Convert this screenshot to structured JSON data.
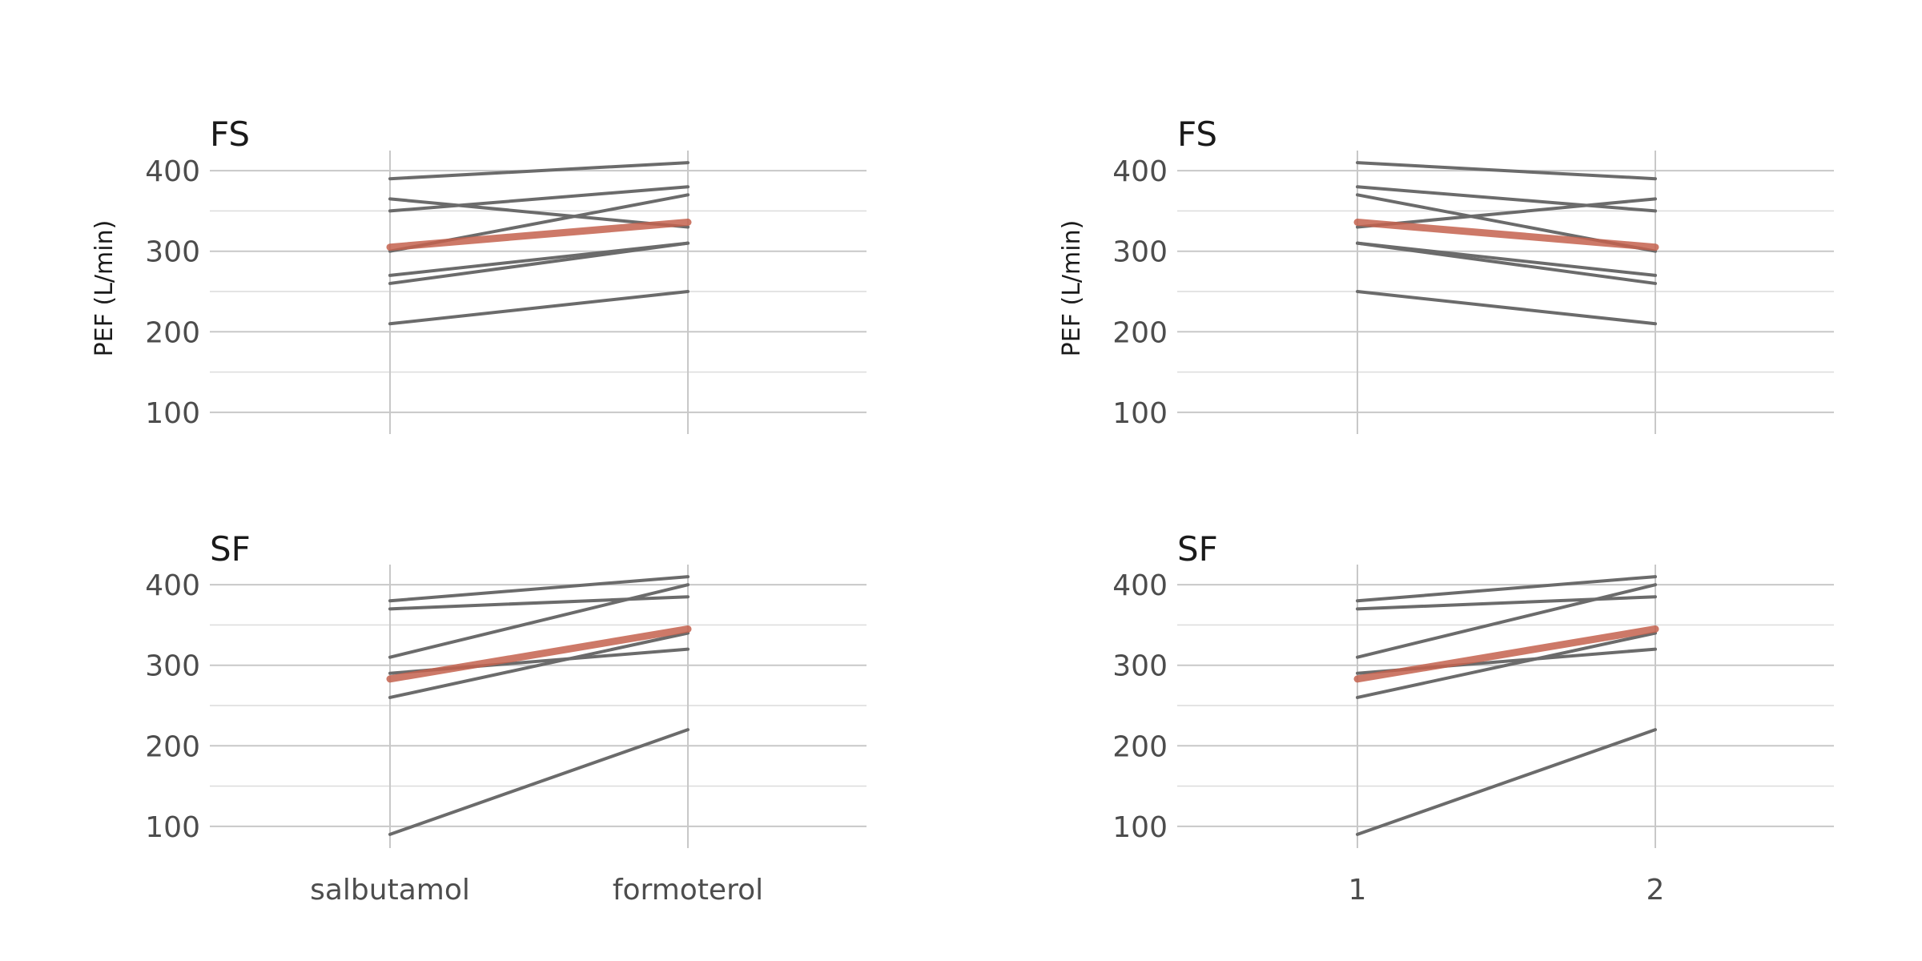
{
  "chart_data": [
    {
      "type": "line",
      "title": "FS",
      "ylabel": "PEF (L/min)",
      "categories": [
        "salbutamol",
        "formoterol"
      ],
      "show_x_tick_labels": false,
      "ylim": [
        75,
        425
      ],
      "yticks": [
        100,
        200,
        300,
        400
      ],
      "grid": true,
      "series": [
        {
          "values": [
            390,
            410
          ]
        },
        {
          "values": [
            365,
            330
          ]
        },
        {
          "values": [
            350,
            380
          ]
        },
        {
          "values": [
            300,
            370
          ]
        },
        {
          "values": [
            270,
            310
          ]
        },
        {
          "values": [
            260,
            310
          ]
        },
        {
          "values": [
            210,
            250
          ]
        }
      ],
      "mean_series": {
        "values": [
          305,
          336
        ],
        "color": "#c4614d"
      }
    },
    {
      "type": "line",
      "title": "FS",
      "ylabel": "PEF (L/min)",
      "categories": [
        "1",
        "2"
      ],
      "show_x_tick_labels": false,
      "ylim": [
        75,
        425
      ],
      "yticks": [
        100,
        200,
        300,
        400
      ],
      "grid": true,
      "series": [
        {
          "values": [
            410,
            390
          ]
        },
        {
          "values": [
            380,
            350
          ]
        },
        {
          "values": [
            370,
            300
          ]
        },
        {
          "values": [
            330,
            365
          ]
        },
        {
          "values": [
            310,
            270
          ]
        },
        {
          "values": [
            310,
            260
          ]
        },
        {
          "values": [
            250,
            210
          ]
        }
      ],
      "mean_series": {
        "values": [
          336,
          305
        ],
        "color": "#c4614d"
      }
    },
    {
      "type": "line",
      "title": "SF",
      "ylabel": "",
      "categories": [
        "salbutamol",
        "formoterol"
      ],
      "show_x_tick_labels": true,
      "ylim": [
        75,
        425
      ],
      "yticks": [
        100,
        200,
        300,
        400
      ],
      "grid": true,
      "series": [
        {
          "values": [
            380,
            410
          ]
        },
        {
          "values": [
            370,
            385
          ]
        },
        {
          "values": [
            310,
            400
          ]
        },
        {
          "values": [
            290,
            320
          ]
        },
        {
          "values": [
            260,
            340
          ]
        },
        {
          "values": [
            90,
            220
          ]
        }
      ],
      "mean_series": {
        "values": [
          283,
          345
        ],
        "color": "#c4614d"
      }
    },
    {
      "type": "line",
      "title": "SF",
      "ylabel": "",
      "categories": [
        "1",
        "2"
      ],
      "show_x_tick_labels": true,
      "ylim": [
        75,
        425
      ],
      "yticks": [
        100,
        200,
        300,
        400
      ],
      "grid": true,
      "series": [
        {
          "values": [
            380,
            410
          ]
        },
        {
          "values": [
            370,
            385
          ]
        },
        {
          "values": [
            310,
            400
          ]
        },
        {
          "values": [
            290,
            320
          ]
        },
        {
          "values": [
            260,
            340
          ]
        },
        {
          "values": [
            90,
            220
          ]
        }
      ],
      "mean_series": {
        "values": [
          283,
          345
        ],
        "color": "#c4614d"
      }
    }
  ]
}
